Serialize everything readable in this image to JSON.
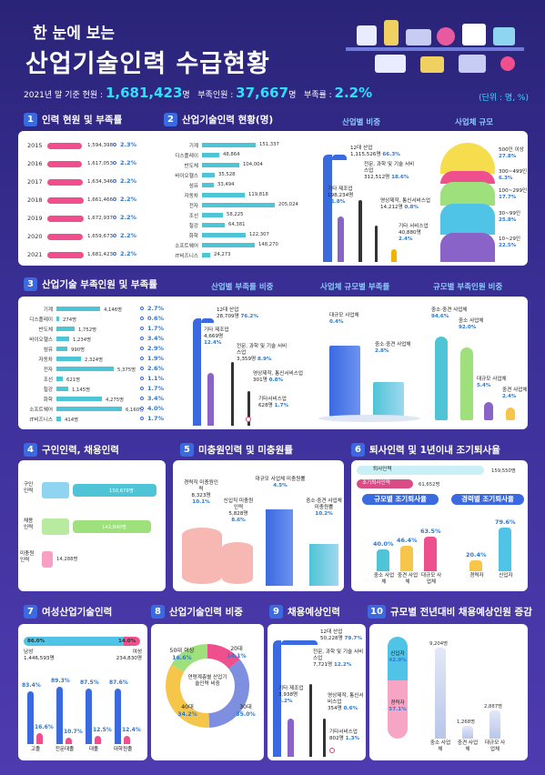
{
  "header": {
    "line1": "한 눈에 보는",
    "line2": "산업기술인력 수급현황",
    "stat_prefix": "2021년 말 기준 현원 :",
    "stat_current": "1,681,423",
    "stat_unit": "명",
    "stat_shortage_label": "부족인원 :",
    "stat_shortage": "37,667",
    "stat_shortage_unit": "명",
    "stat_rate_label": "부족률 :",
    "stat_rate": "2.2%",
    "unit": "(단위 : 명, %)"
  },
  "s1": {
    "num": "1",
    "title": "인력 현원 및 부족률",
    "rows": [
      {
        "year": "2015",
        "value": "1,594,398",
        "rate": "2.3%",
        "v": 1594398
      },
      {
        "year": "2016",
        "value": "1,617,053",
        "rate": "2.2%",
        "v": 1617053
      },
      {
        "year": "2017",
        "value": "1,634,346",
        "rate": "2.2%",
        "v": 1634346
      },
      {
        "year": "2018",
        "value": "1,661,466",
        "rate": "2.2%",
        "v": 1661466
      },
      {
        "year": "2019",
        "value": "1,672,937",
        "rate": "2.2%",
        "v": 1672937
      },
      {
        "year": "2020",
        "value": "1,659,673",
        "rate": "2.2%",
        "v": 1659673
      },
      {
        "year": "2021",
        "value": "1,681,423",
        "rate": "2.2%",
        "v": 1681423
      }
    ]
  },
  "s2": {
    "num": "2",
    "title": "산업기술인력 현황(명)",
    "sub1": "산업별 비중",
    "sub2": "사업체 규모",
    "rows": [
      {
        "label": "기계",
        "value": "151,337",
        "v": 151337
      },
      {
        "label": "디스플레이",
        "value": "48,864",
        "v": 48864
      },
      {
        "label": "반도체",
        "value": "104,004",
        "v": 104004
      },
      {
        "label": "바이오헬스",
        "value": "35,528",
        "v": 35528
      },
      {
        "label": "섬유",
        "value": "33,494",
        "v": 33494
      },
      {
        "label": "자동차",
        "value": "119,818",
        "v": 119818
      },
      {
        "label": "전자",
        "value": "205,024",
        "v": 205024
      },
      {
        "label": "조선",
        "value": "58,225",
        "v": 58225
      },
      {
        "label": "철강",
        "value": "64,381",
        "v": 64381
      },
      {
        "label": "화학",
        "value": "122,307",
        "v": 122307
      },
      {
        "label": "소프트웨어",
        "value": "148,270",
        "v": 148270
      },
      {
        "label": "IT비즈니스",
        "value": "24,273",
        "v": 24273
      }
    ],
    "ind": [
      {
        "name": "12대 산업",
        "value": "1,115,526명",
        "pct": "66.3%"
      },
      {
        "name": "기타 제조업",
        "value": "198,234명",
        "pct": "11.8%"
      },
      {
        "name": "전문, 과학 및 기술 서비스업",
        "value": "312,512명",
        "pct": "18.6%"
      },
      {
        "name": "영상제작, 통신서비스업",
        "value": "14,212명",
        "pct": "0.8%"
      },
      {
        "name": "기타 서비스업",
        "value": "40,880명",
        "pct": "2.4%"
      }
    ],
    "size": [
      {
        "name": "500인 이상",
        "pct": "27.8%"
      },
      {
        "name": "300~499인",
        "pct": "6.3%"
      },
      {
        "name": "100~299인",
        "pct": "17.7%"
      },
      {
        "name": "30~99인",
        "pct": "25.8%"
      },
      {
        "name": "10~29인",
        "pct": "22.5%"
      }
    ]
  },
  "s3": {
    "num": "3",
    "title": "산업기술 부족인원 및 부족률",
    "sub1": "산업별 부족률 비중",
    "sub2": "사업체 규모별 부족률",
    "sub3": "규모별 부족인원 비중",
    "rows": [
      {
        "label": "기계",
        "value": "4,146명",
        "rate": "2.7%",
        "v": 4146
      },
      {
        "label": "디스플레이",
        "value": "274명",
        "rate": "0.6%",
        "v": 274
      },
      {
        "label": "반도체",
        "value": "1,752명",
        "rate": "1.7%",
        "v": 1752
      },
      {
        "label": "바이오헬스",
        "value": "1,234명",
        "rate": "3.4%",
        "v": 1234
      },
      {
        "label": "섬유",
        "value": "990명",
        "rate": "2.9%",
        "v": 990
      },
      {
        "label": "자동차",
        "value": "2,324명",
        "rate": "1.9%",
        "v": 2324
      },
      {
        "label": "전자",
        "value": "5,375명",
        "rate": "2.6%",
        "v": 5375
      },
      {
        "label": "조선",
        "value": "621명",
        "rate": "1.1%",
        "v": 621
      },
      {
        "label": "철강",
        "value": "1,145명",
        "rate": "1.7%",
        "v": 1145
      },
      {
        "label": "화학",
        "value": "4,275명",
        "rate": "3.4%",
        "v": 4275
      },
      {
        "label": "소프트웨어",
        "value": "6,160명",
        "rate": "4.0%",
        "v": 6160
      },
      {
        "label": "IT비즈니스",
        "value": "414명",
        "rate": "1.7%",
        "v": 414
      }
    ],
    "ind": [
      {
        "name": "12대 산업",
        "value": "28,709명",
        "pct": "76.2%"
      },
      {
        "name": "기타 제조업",
        "value": "4,669명",
        "pct": "12.4%"
      },
      {
        "name": "전문, 과학 및 기술 서비스업",
        "value": "3,359명",
        "pct": "8.9%"
      },
      {
        "name": "영상제작, 통신서비스업",
        "value": "301명",
        "pct": "0.8%"
      },
      {
        "name": "기타서비스업",
        "value": "628명",
        "pct": "1.7%"
      }
    ],
    "sizes": [
      {
        "name": "대규모 사업체",
        "pct": "0.4%"
      },
      {
        "name": "중소·중견 사업체",
        "pct": "2.8%"
      }
    ],
    "people": [
      {
        "name": "중소·중견 사업체",
        "pct": "94.6%"
      },
      {
        "name": "중소 사업체",
        "pct": "92.0%"
      },
      {
        "name": "대규모 사업체",
        "pct": "5.4%"
      },
      {
        "name": "중견 사업체",
        "pct": "2.4%"
      }
    ]
  },
  "s4": {
    "num": "4",
    "title": "구인인력, 채용인력",
    "rows": [
      {
        "label": "구인 인력",
        "value": "150,678명"
      },
      {
        "label": "채용 인력",
        "value": "142,840명"
      },
      {
        "label": "미충원 인력",
        "value": "14,288명"
      }
    ]
  },
  "s5": {
    "num": "5",
    "title": "미충원인력 및 미충원률",
    "items": [
      {
        "name": "경력직 미충원인력",
        "value": "8,323명",
        "pct": "10.1%"
      },
      {
        "name": "신입직 미충원인력",
        "value": "5,828명",
        "pct": "8.6%"
      },
      {
        "name": "대규모 사업체 미충원률",
        "pct": "4.5%"
      },
      {
        "name": "중소·중견 사업체 미충원률",
        "pct": "10.2%"
      }
    ]
  },
  "s6": {
    "num": "6",
    "title": "퇴사인력 및 1년이내 조기퇴사율",
    "quit_label": "퇴사인력",
    "quit_value": "159,550명",
    "early_label": "조기퇴사인력",
    "early_value": "61,652명",
    "sub1": "규모별 조기퇴사율",
    "sub2": "경력별 조기퇴사율",
    "size": [
      {
        "name": "중소 사업체",
        "pct": "40.0%",
        "v": 40.0
      },
      {
        "name": "중견 사업체",
        "pct": "46.4%",
        "v": 46.4
      },
      {
        "name": "대규모 사업체",
        "pct": "63.5%",
        "v": 63.5
      }
    ],
    "career": [
      {
        "name": "경력자",
        "pct": "20.4%",
        "v": 20.4
      },
      {
        "name": "신입자",
        "pct": "79.6%",
        "v": 79.6
      }
    ]
  },
  "s7": {
    "num": "7",
    "title": "여성산업기술인력",
    "male_pct": "86.0%",
    "female_pct": "14.0%",
    "male_label": "남성",
    "male_value": "1,446,593명",
    "female_label": "여성",
    "female_value": "234,830명",
    "edu": [
      {
        "name": "고졸",
        "m": "83.4%",
        "f": "16.6%",
        "mv": 83.4,
        "fv": 16.6
      },
      {
        "name": "전문대졸",
        "m": "89.3%",
        "f": "10.7%",
        "mv": 89.3,
        "fv": 10.7
      },
      {
        "name": "대졸",
        "m": "87.5%",
        "f": "12.5%",
        "mv": 87.5,
        "fv": 12.5
      },
      {
        "name": "대학원졸",
        "m": "87.6%",
        "f": "12.4%",
        "mv": 87.6,
        "fv": 12.4
      }
    ]
  },
  "s8": {
    "num": "8",
    "title": "산업기술인력 비중",
    "center": "연령계층별 산업기술인력 비중",
    "ages": [
      {
        "name": "20대",
        "pct": "14.1%",
        "v": 14.1,
        "color": "#ef4f8c"
      },
      {
        "name": "30대",
        "pct": "35.0%",
        "v": 35.0,
        "color": "#7f8fe0"
      },
      {
        "name": "40대",
        "pct": "34.2%",
        "v": 34.2,
        "color": "#f6c64a"
      },
      {
        "name": "50대 이상",
        "pct": "16.6%",
        "v": 16.6,
        "color": "#9ee07c"
      }
    ]
  },
  "s9": {
    "num": "9",
    "title": "채용예상인력",
    "ind": [
      {
        "name": "12대 산업",
        "value": "50,228명",
        "pct": "79.7%"
      },
      {
        "name": "기타 제조업",
        "value": "3,938명",
        "pct": "6.2%"
      },
      {
        "name": "전문, 과학 및 기술 서비스업",
        "value": "7,721명",
        "pct": "12.2%"
      },
      {
        "name": "영상제작, 통신서비스업",
        "value": "354명",
        "pct": "0.6%"
      },
      {
        "name": "기타서비스업",
        "value": "802명",
        "pct": "1.3%"
      }
    ]
  },
  "s10": {
    "num": "10",
    "title": "규모별 전년대비 채용예상인원 증감",
    "new_label": "신입자",
    "new_pct": "42.9%",
    "exp_label": "경력자",
    "exp_pct": "57.1%",
    "bars": [
      {
        "name": "중소 사업체",
        "value": "9,204명",
        "v": 9204
      },
      {
        "name": "중견 사업체",
        "value": "1,268명",
        "v": 1268
      },
      {
        "name": "대규모 사업체",
        "value": "2,887명",
        "v": 2887
      }
    ]
  }
}
